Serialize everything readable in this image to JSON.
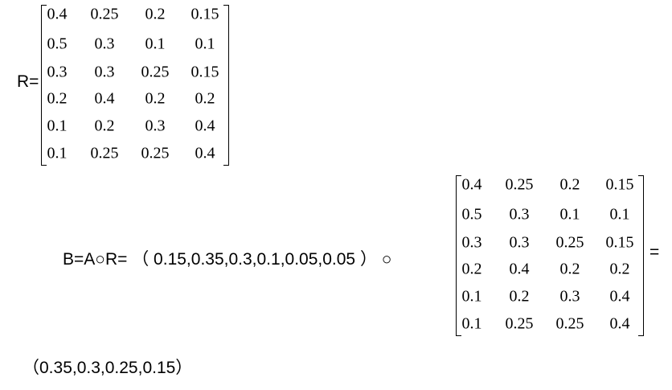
{
  "first_equation": {
    "label": "R=",
    "matrix": [
      [
        "0.4",
        "0.25",
        "0.2",
        "0.15"
      ],
      [
        "0.5",
        "0.3",
        "0.1",
        "0.1"
      ],
      [
        "0.3",
        "0.3",
        "0.25",
        "0.15"
      ],
      [
        "0.2",
        "0.4",
        "0.2",
        "0.2"
      ],
      [
        "0.1",
        "0.2",
        "0.3",
        "0.4"
      ],
      [
        "0.1",
        "0.25",
        "0.25",
        "0.4"
      ]
    ]
  },
  "second_equation": {
    "lhs": "B=A○R= （ 0.15,0.35,0.3,0.1,0.05,0.05 ） ○",
    "matrix": [
      [
        "0.4",
        "0.25",
        "0.2",
        "0.15"
      ],
      [
        "0.5",
        "0.3",
        "0.1",
        "0.1"
      ],
      [
        "0.3",
        "0.3",
        "0.25",
        "0.15"
      ],
      [
        "0.2",
        "0.4",
        "0.2",
        "0.2"
      ],
      [
        "0.1",
        "0.2",
        "0.3",
        "0.4"
      ],
      [
        "0.1",
        "0.25",
        "0.25",
        "0.4"
      ]
    ],
    "equals": "=",
    "result": "（0.35,0.3,0.25,0.15）"
  }
}
